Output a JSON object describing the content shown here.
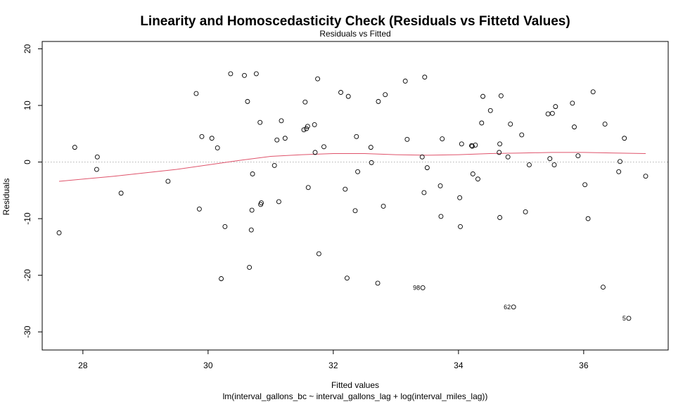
{
  "chart_data": {
    "type": "scatter",
    "title": "Linearity and Homoscedasticity Check (Residuals vs Fittetd Values)",
    "subtitle": "Residuals vs Fitted",
    "xlabel": "Fitted values",
    "xlabel_sub": "lm(interval_gallons_bc ~ interval_gallons_lag + log(interval_miles_lag))",
    "ylabel": "Residuals",
    "xlim": [
      27.35,
      37.35
    ],
    "ylim": [
      -33.2,
      21.3
    ],
    "xticks": [
      "28",
      "30",
      "32",
      "34",
      "36"
    ],
    "yticks": [
      "-30",
      "-20",
      "-10",
      "0",
      "10",
      "20"
    ],
    "zero_line": true,
    "colors": {
      "points": "#000000",
      "smooth": "#DF536B",
      "zero_line": "#b0b0b0"
    },
    "points": [
      [
        27.62,
        -12.5
      ],
      [
        27.87,
        2.6
      ],
      [
        28.22,
        -1.3
      ],
      [
        28.23,
        0.9
      ],
      [
        28.61,
        -5.5
      ],
      [
        29.36,
        -3.4
      ],
      [
        29.81,
        12.1
      ],
      [
        29.86,
        -8.3
      ],
      [
        29.9,
        4.5
      ],
      [
        30.06,
        4.2
      ],
      [
        30.15,
        2.5
      ],
      [
        30.21,
        -20.6
      ],
      [
        30.27,
        -11.4
      ],
      [
        30.36,
        15.6
      ],
      [
        30.58,
        15.3
      ],
      [
        30.63,
        10.7
      ],
      [
        30.66,
        -18.6
      ],
      [
        30.69,
        -12.0
      ],
      [
        30.7,
        -8.5
      ],
      [
        30.71,
        -2.1
      ],
      [
        30.77,
        15.6
      ],
      [
        30.83,
        7.0
      ],
      [
        30.84,
        -7.5
      ],
      [
        30.85,
        -7.2
      ],
      [
        31.06,
        -0.6
      ],
      [
        31.1,
        3.9
      ],
      [
        31.13,
        -7.0
      ],
      [
        31.17,
        7.3
      ],
      [
        31.23,
        4.2
      ],
      [
        31.53,
        5.7
      ],
      [
        31.55,
        10.6
      ],
      [
        31.57,
        5.9
      ],
      [
        31.59,
        6.3
      ],
      [
        31.6,
        -4.5
      ],
      [
        31.7,
        6.6
      ],
      [
        31.71,
        1.7
      ],
      [
        31.75,
        14.7
      ],
      [
        31.77,
        -16.2
      ],
      [
        31.85,
        2.7
      ],
      [
        32.12,
        12.3
      ],
      [
        32.19,
        -4.8
      ],
      [
        32.22,
        -20.5
      ],
      [
        32.24,
        11.6
      ],
      [
        32.35,
        -8.6
      ],
      [
        32.37,
        4.5
      ],
      [
        32.39,
        -1.7
      ],
      [
        32.6,
        2.6
      ],
      [
        32.61,
        -0.1
      ],
      [
        32.71,
        -21.4
      ],
      [
        32.72,
        10.7
      ],
      [
        32.8,
        -7.8
      ],
      [
        32.83,
        11.9
      ],
      [
        33.15,
        14.3
      ],
      [
        33.18,
        4.0
      ],
      [
        33.42,
        0.9
      ],
      [
        33.43,
        -22.2
      ],
      [
        33.45,
        -5.4
      ],
      [
        33.46,
        15.0
      ],
      [
        33.5,
        -1.0
      ],
      [
        33.71,
        -4.2
      ],
      [
        33.72,
        -9.6
      ],
      [
        33.74,
        4.1
      ],
      [
        34.02,
        -6.3
      ],
      [
        34.03,
        -11.4
      ],
      [
        34.05,
        3.2
      ],
      [
        34.21,
        2.9
      ],
      [
        34.22,
        2.8
      ],
      [
        34.23,
        -2.1
      ],
      [
        34.27,
        3.0
      ],
      [
        34.31,
        -3.0
      ],
      [
        34.37,
        6.9
      ],
      [
        34.39,
        11.6
      ],
      [
        34.51,
        9.1
      ],
      [
        34.65,
        1.7
      ],
      [
        34.66,
        3.2
      ],
      [
        34.66,
        -9.8
      ],
      [
        34.68,
        11.7
      ],
      [
        34.79,
        0.9
      ],
      [
        34.83,
        6.7
      ],
      [
        34.88,
        -25.6
      ],
      [
        35.01,
        4.8
      ],
      [
        35.07,
        -8.8
      ],
      [
        35.13,
        -0.5
      ],
      [
        35.43,
        8.5
      ],
      [
        35.46,
        0.6
      ],
      [
        35.5,
        8.6
      ],
      [
        35.53,
        -0.5
      ],
      [
        35.55,
        9.8
      ],
      [
        35.82,
        10.4
      ],
      [
        35.85,
        6.2
      ],
      [
        35.91,
        1.1
      ],
      [
        36.02,
        -4.0
      ],
      [
        36.07,
        -10.0
      ],
      [
        36.15,
        12.4
      ],
      [
        36.31,
        -22.1
      ],
      [
        36.34,
        6.7
      ],
      [
        36.56,
        -1.7
      ],
      [
        36.58,
        0.1
      ],
      [
        36.65,
        4.2
      ],
      [
        36.72,
        -27.6
      ],
      [
        36.99,
        -2.5
      ]
    ],
    "labeled_points": [
      {
        "label": "98",
        "x": 33.43,
        "y": -22.2
      },
      {
        "label": "62",
        "x": 34.88,
        "y": -25.6
      },
      {
        "label": "5",
        "x": 36.72,
        "y": -27.6
      }
    ],
    "smooth": [
      [
        27.62,
        -3.4
      ],
      [
        28.5,
        -2.5
      ],
      [
        29.5,
        -1.3
      ],
      [
        30.0,
        -0.5
      ],
      [
        30.5,
        0.3
      ],
      [
        31.0,
        1.0
      ],
      [
        31.5,
        1.3
      ],
      [
        32.0,
        1.5
      ],
      [
        32.5,
        1.5
      ],
      [
        33.0,
        1.3
      ],
      [
        33.5,
        1.2
      ],
      [
        34.0,
        1.3
      ],
      [
        34.5,
        1.5
      ],
      [
        35.0,
        1.6
      ],
      [
        35.5,
        1.7
      ],
      [
        36.0,
        1.7
      ],
      [
        36.5,
        1.6
      ],
      [
        36.99,
        1.5
      ]
    ]
  }
}
